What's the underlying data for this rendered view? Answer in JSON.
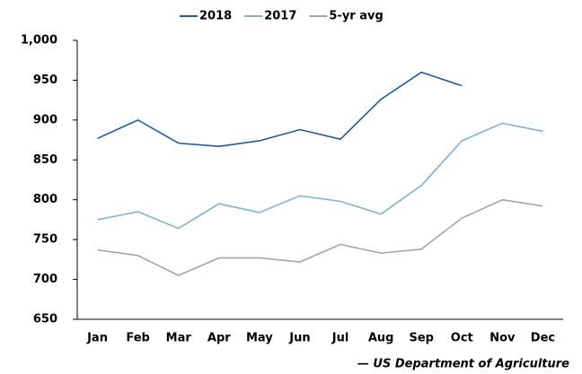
{
  "chart_data": {
    "type": "line",
    "categories": [
      "Jan",
      "Feb",
      "Mar",
      "Apr",
      "May",
      "Jun",
      "Jul",
      "Aug",
      "Sep",
      "Oct",
      "Nov",
      "Dec"
    ],
    "series": [
      {
        "name": "2018",
        "color": "#1f5c99",
        "values": [
          877,
          900,
          871,
          867,
          874,
          888,
          876,
          926,
          960,
          943,
          null,
          null
        ]
      },
      {
        "name": "2017",
        "color": "#7fb2d9",
        "values": [
          775,
          785,
          764,
          795,
          784,
          805,
          798,
          782,
          818,
          874,
          896,
          886
        ]
      },
      {
        "name": "5-yr avg",
        "color": "#a6a6a6",
        "values": [
          737,
          730,
          705,
          727,
          727,
          722,
          744,
          733,
          738,
          777,
          800,
          792
        ]
      }
    ],
    "ylim": [
      650,
      1000
    ],
    "yticks": [
      650,
      700,
      750,
      800,
      850,
      900,
      950,
      {
        "value": 1000,
        "label": "1,000"
      }
    ],
    "legend": "top",
    "source": "— US Department of Agriculture"
  }
}
